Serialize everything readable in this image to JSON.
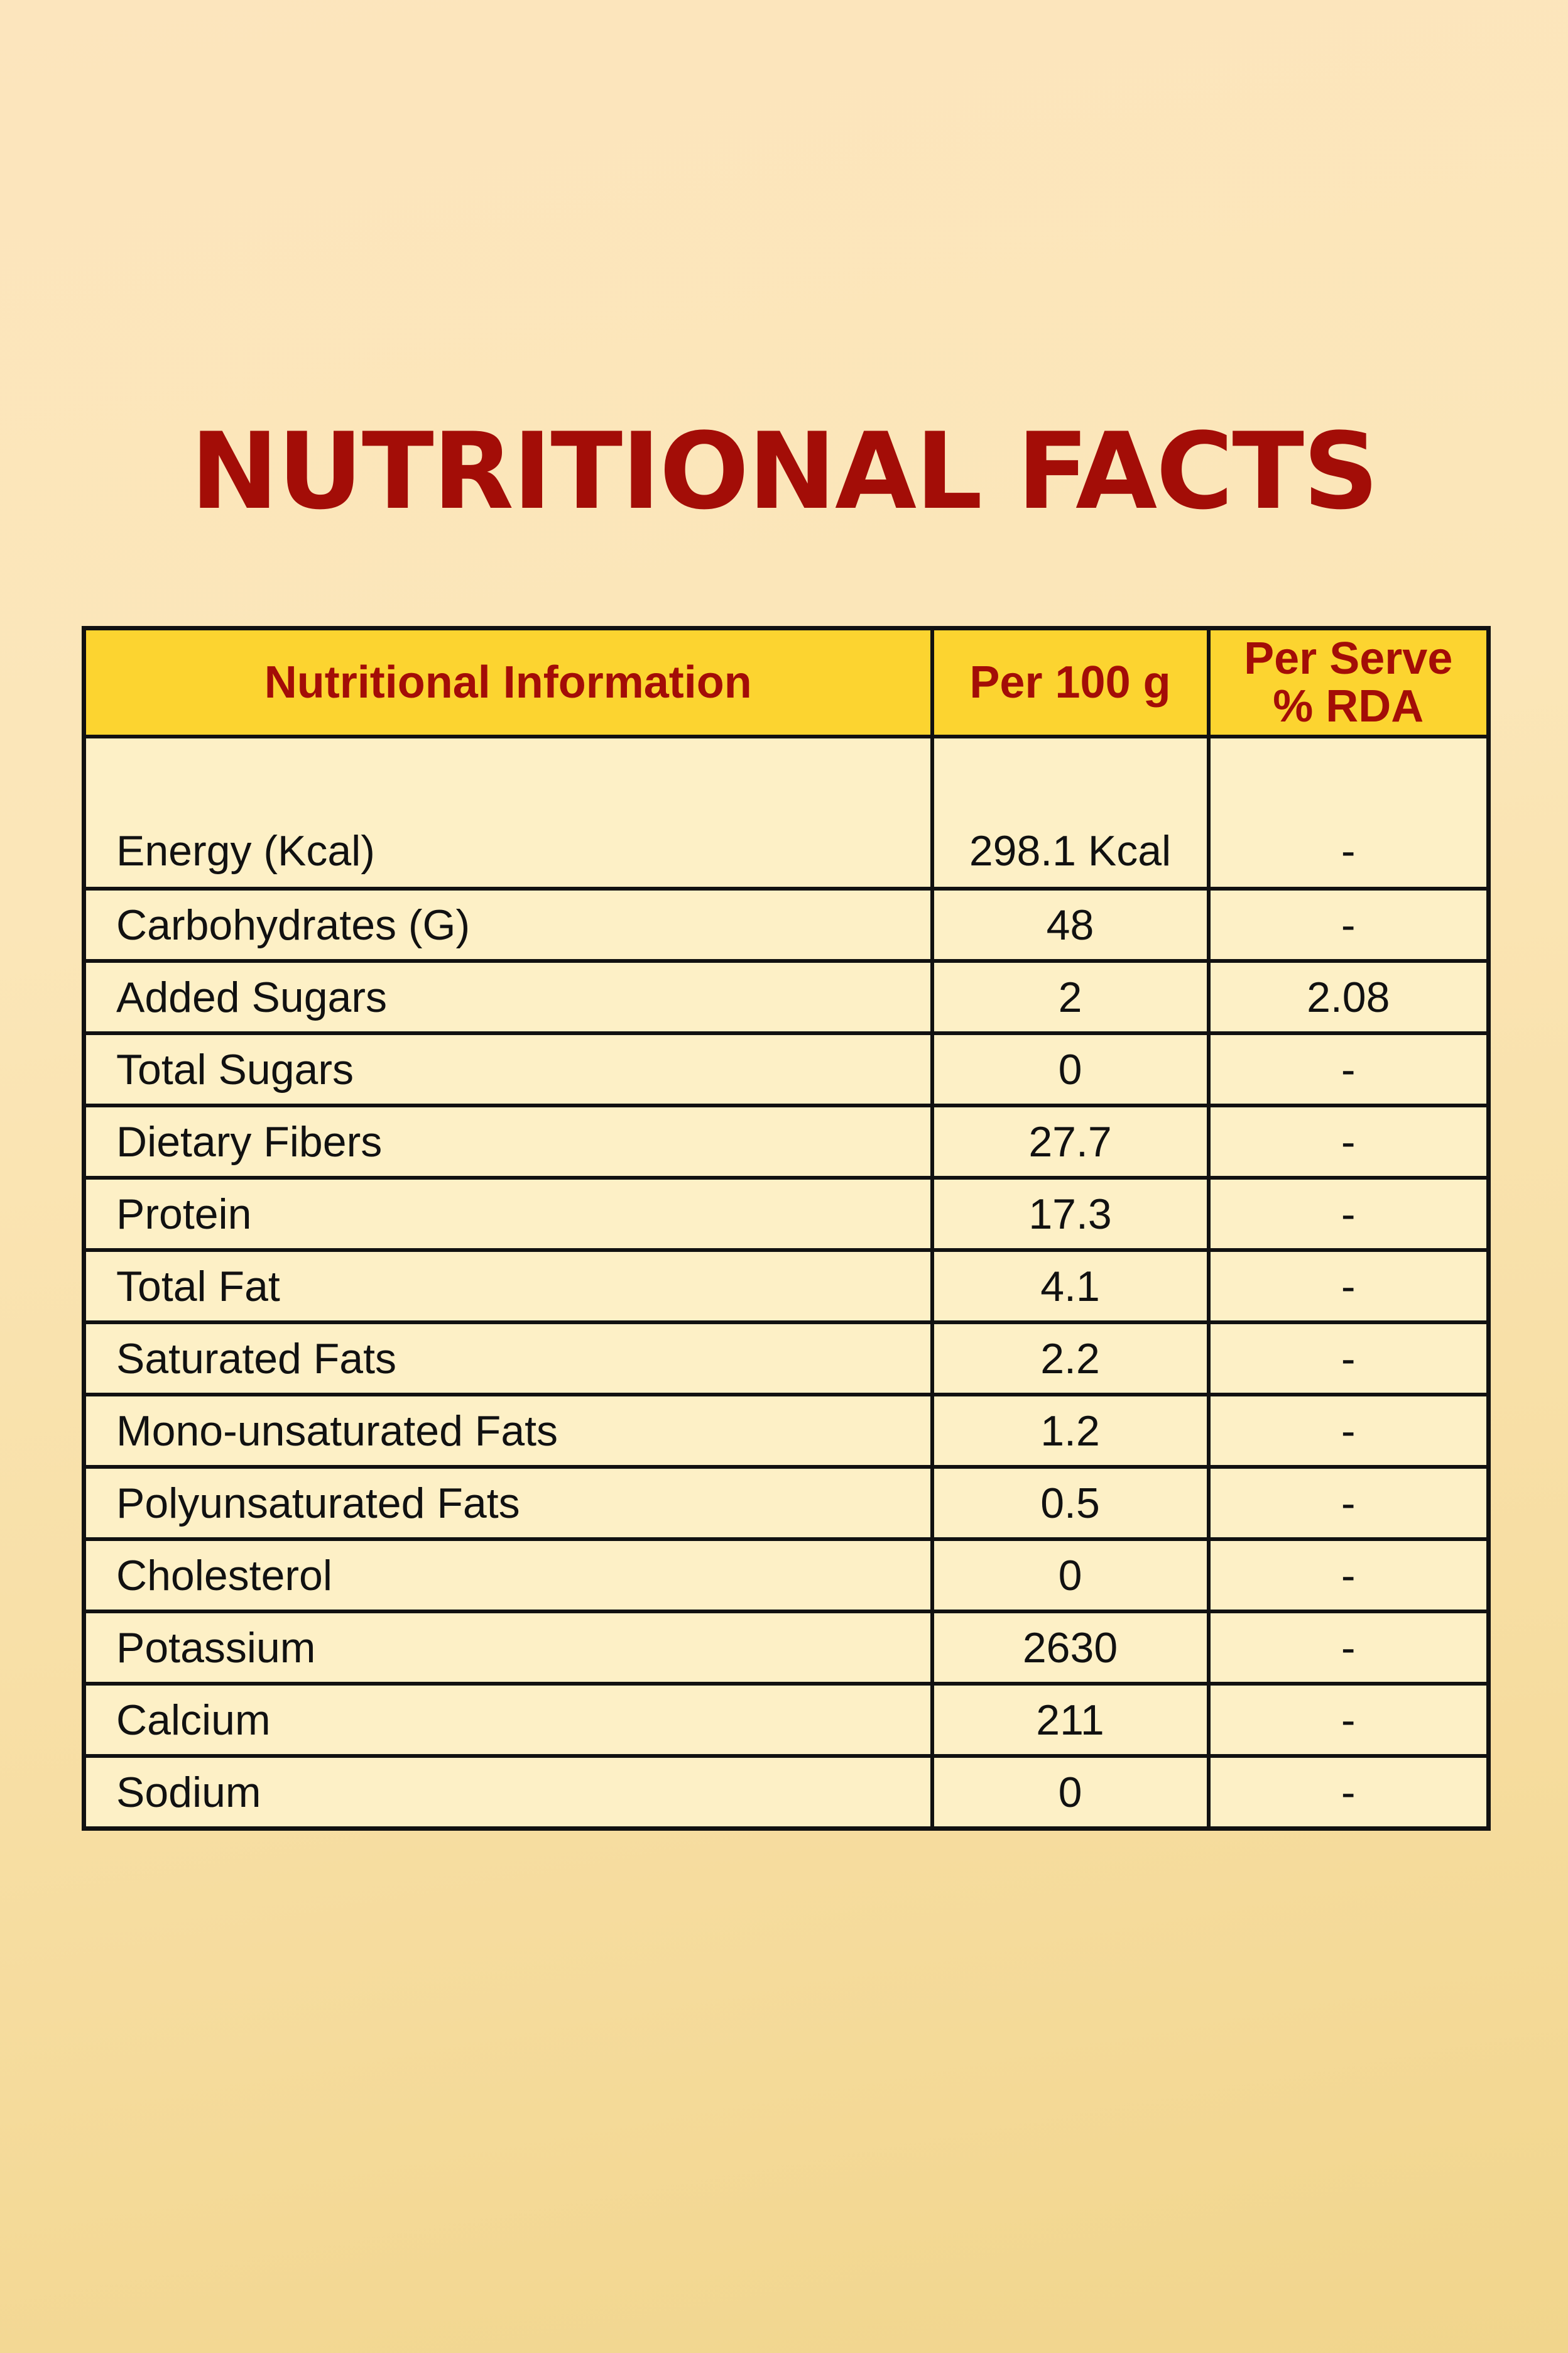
{
  "title": "NUTRITIONAL FACTS",
  "table": {
    "headers": {
      "nutrient": "Nutritional Information",
      "per_100g": "Per 100 g",
      "rda_line1": "Per Serve",
      "rda_line2": "% RDA"
    },
    "rows": [
      {
        "nutrient": "Energy (Kcal)",
        "per_100g": "298.1 Kcal",
        "rda": "-"
      },
      {
        "nutrient": "Carbohydrates (G)",
        "per_100g": "48",
        "rda": "-"
      },
      {
        "nutrient": "Added Sugars",
        "per_100g": "2",
        "rda": "2.08"
      },
      {
        "nutrient": "Total Sugars",
        "per_100g": "0",
        "rda": "-"
      },
      {
        "nutrient": "Dietary Fibers",
        "per_100g": "27.7",
        "rda": "-"
      },
      {
        "nutrient": "Protein",
        "per_100g": "17.3",
        "rda": "-"
      },
      {
        "nutrient": "Total Fat",
        "per_100g": "4.1",
        "rda": "-"
      },
      {
        "nutrient": "Saturated Fats",
        "per_100g": "2.2",
        "rda": "-"
      },
      {
        "nutrient": "Mono-unsaturated Fats",
        "per_100g": "1.2",
        "rda": "-"
      },
      {
        "nutrient": "Polyunsaturated Fats",
        "per_100g": "0.5",
        "rda": "-"
      },
      {
        "nutrient": "Cholesterol",
        "per_100g": "0",
        "rda": "-"
      },
      {
        "nutrient": "Potassium",
        "per_100g": "2630",
        "rda": "-"
      },
      {
        "nutrient": "Calcium",
        "per_100g": "211",
        "rda": "-"
      },
      {
        "nutrient": "Sodium",
        "per_100g": "0",
        "rda": "-"
      }
    ]
  },
  "colors": {
    "title": "#a30d07",
    "header_bg": "#fcd430",
    "cell_bg": "#fdf0c6",
    "border": "#111111"
  }
}
